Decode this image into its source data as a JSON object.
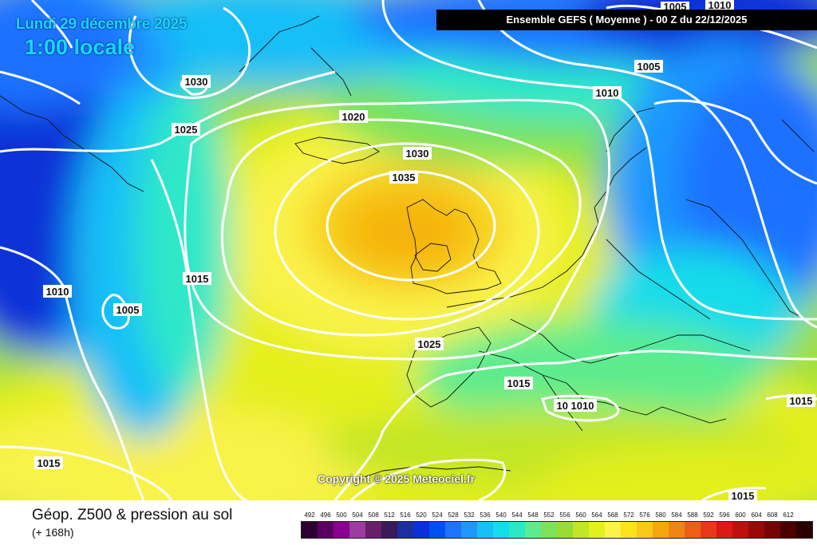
{
  "header": {
    "date": "Lundi 29 décembre 2025",
    "local_time": "1:00 locale",
    "run_info": "Ensemble GEFS  ( Moyenne )  -  00 Z du 22/12/2025"
  },
  "map": {
    "copyright": "Copyright © 2025 Meteociel.fr",
    "isobar_labels": [
      "1030",
      "1025",
      "1020",
      "1030",
      "1035",
      "1010",
      "1005",
      "1015",
      "1010",
      "1005",
      "1005",
      "1010",
      "1025",
      "1015",
      "1010",
      "1010",
      "1015",
      "1015",
      "1015"
    ]
  },
  "footer": {
    "parameter": "Géop. Z500 & pression au sol",
    "lead_time": "(+ 168h)"
  },
  "legend": {
    "unit_values": [
      "492",
      "496",
      "500",
      "504",
      "508",
      "512",
      "516",
      "520",
      "524",
      "528",
      "532",
      "536",
      "540",
      "544",
      "548",
      "552",
      "556",
      "560",
      "564",
      "568",
      "572",
      "576",
      "580",
      "584",
      "588",
      "592",
      "596",
      "600",
      "604",
      "608",
      "612"
    ],
    "colors": [
      "#2b0030",
      "#5a0060",
      "#8a0090",
      "#9c3ca0",
      "#6a1e6a",
      "#3a1a5a",
      "#1c2fa0",
      "#0a30d8",
      "#0050f0",
      "#1f72ff",
      "#1d98ff",
      "#19bff7",
      "#16dcea",
      "#2de8c8",
      "#5cec8e",
      "#7ce25a",
      "#99dc32",
      "#c2e626",
      "#e3f01e",
      "#f9f34a",
      "#fbe41c",
      "#f8c918",
      "#f5a70e",
      "#f28412",
      "#ee5e17",
      "#e8381a",
      "#da1a14",
      "#c0100c",
      "#9c0808",
      "#760404",
      "#4c0000",
      "#2a0000"
    ]
  }
}
